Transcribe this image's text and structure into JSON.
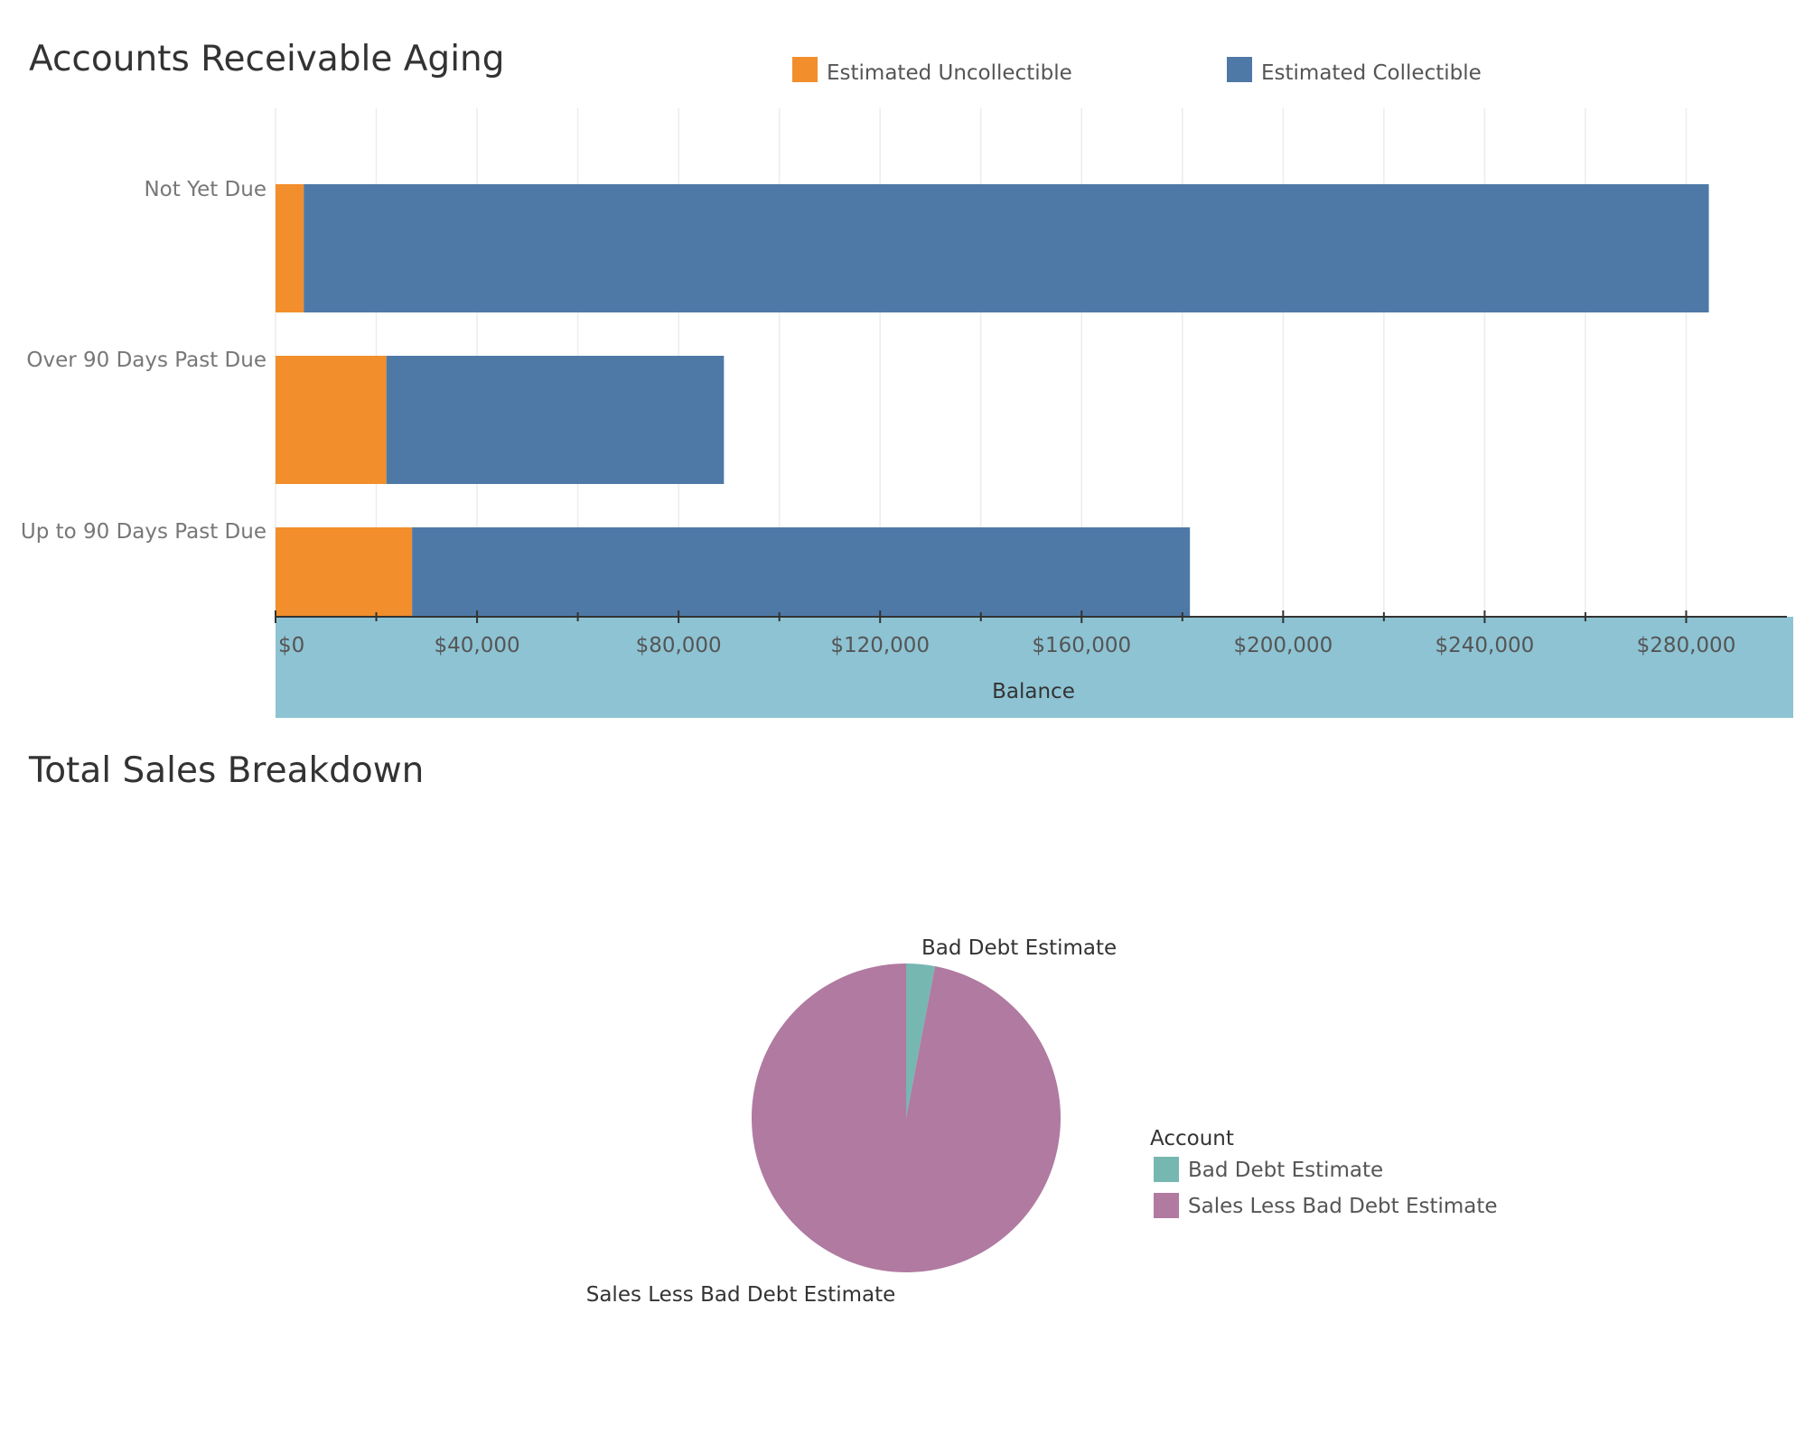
{
  "chart_data": [
    {
      "type": "bar",
      "orientation": "horizontal",
      "stacked": true,
      "title": "Accounts Receivable Aging",
      "categories": [
        "Not Yet Due",
        "Over 90 Days Past Due",
        "Up to 90 Days Past Due"
      ],
      "series": [
        {
          "name": "Estimated Uncollectible",
          "color": "#F28E2B",
          "values": [
            5600,
            22000,
            27100
          ]
        },
        {
          "name": "Estimated Collectible",
          "color": "#4E79A7",
          "values": [
            278900,
            67000,
            154400
          ]
        }
      ],
      "xlabel": "Balance",
      "ylabel": "",
      "xlim": [
        0,
        300000
      ],
      "ticks": [
        0,
        40000,
        80000,
        120000,
        160000,
        200000,
        240000,
        280000
      ],
      "tick_labels": [
        "$0",
        "$40,000",
        "$80,000",
        "$120,000",
        "$160,000",
        "$200,000",
        "$240,000",
        "$280,000"
      ],
      "legend_position": "top"
    },
    {
      "type": "pie",
      "title": "Total Sales Breakdown",
      "legend_title": "Account",
      "slices": [
        {
          "label": "Bad Debt Estimate",
          "value": 3,
          "color": "#76B7B2"
        },
        {
          "label": "Sales Less Bad Debt Estimate",
          "value": 97,
          "color": "#B07AA1"
        }
      ],
      "legend_position": "right"
    }
  ],
  "axis_band_color": "#8DC3D3"
}
